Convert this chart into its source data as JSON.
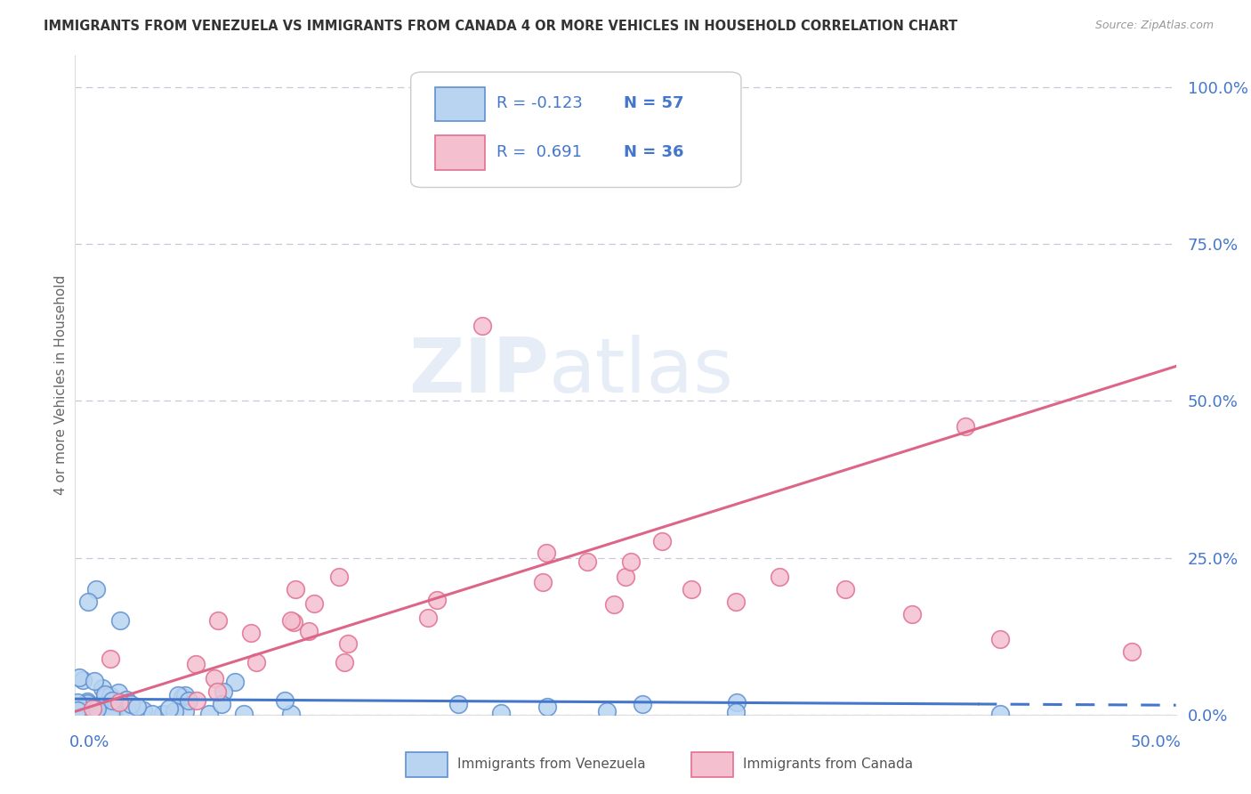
{
  "title": "IMMIGRANTS FROM VENEZUELA VS IMMIGRANTS FROM CANADA 4 OR MORE VEHICLES IN HOUSEHOLD CORRELATION CHART",
  "source": "Source: ZipAtlas.com",
  "ylabel": "4 or more Vehicles in Household",
  "right_ytick_labels": [
    "0.0%",
    "25.0%",
    "50.0%",
    "75.0%",
    "100.0%"
  ],
  "right_ytick_values": [
    0.0,
    0.25,
    0.5,
    0.75,
    1.0
  ],
  "xlim": [
    0.0,
    0.5
  ],
  "ylim": [
    0.0,
    1.05
  ],
  "legend_R_venezuela": "-0.123",
  "legend_N_venezuela": "57",
  "legend_R_canada": "0.691",
  "legend_N_canada": "36",
  "venezuela_fill": "#b8d4f0",
  "venezuela_edge": "#6090d0",
  "canada_fill": "#f4c0d0",
  "canada_edge": "#e07090",
  "venezuela_line_color": "#4477cc",
  "canada_line_color": "#dd6688",
  "background_color": "#ffffff",
  "grid_color": "#c8c8d8",
  "title_color": "#333333",
  "axis_label_color": "#666666",
  "tick_color": "#4477cc",
  "legend_text_color": "#4477cc",
  "source_color": "#999999"
}
